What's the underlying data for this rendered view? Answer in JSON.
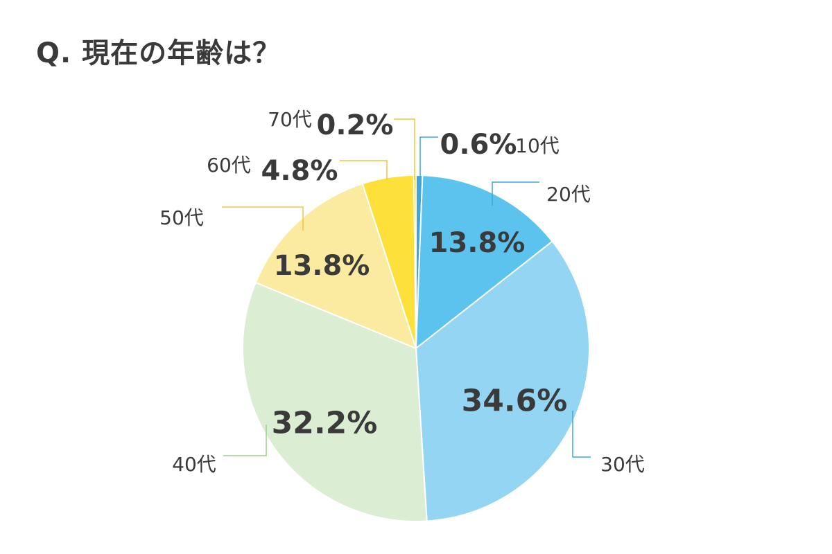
{
  "chart_data": {
    "type": "pie",
    "title": "Q. 現在の年齢は？",
    "slices": [
      {
        "category": "10代",
        "value": 0.6,
        "label": "0.6%",
        "color": "#3fa6dc"
      },
      {
        "category": "20代",
        "value": 13.8,
        "label": "13.8%",
        "color": "#5bc3ee"
      },
      {
        "category": "30代",
        "value": 34.6,
        "label": "34.6%",
        "color": "#93d5f3"
      },
      {
        "category": "40代",
        "value": 32.2,
        "label": "32.2%",
        "color": "#dbedd3"
      },
      {
        "category": "50代",
        "value": 13.8,
        "label": "13.8%",
        "color": "#fbeba0"
      },
      {
        "category": "60代",
        "value": 4.8,
        "label": "4.8%",
        "color": "#fde03a"
      },
      {
        "category": "70代",
        "value": 0.2,
        "label": "0.2%",
        "color": "#f5c518"
      }
    ],
    "leader_colors": {
      "blue": "#3fa6dc",
      "green": "#9bcf86",
      "yellow": "#f0c53a"
    }
  }
}
